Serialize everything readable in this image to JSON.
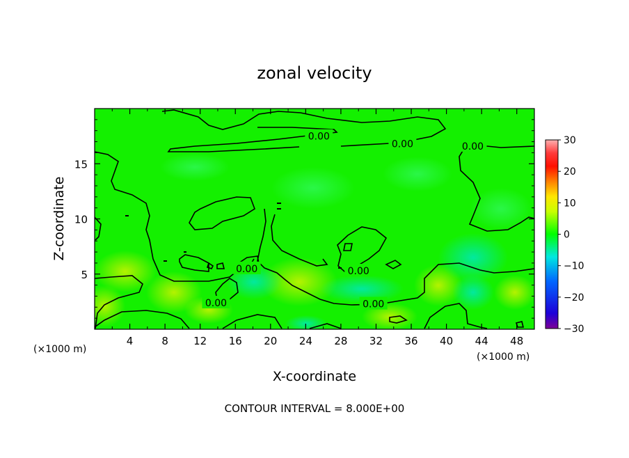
{
  "chart_data": {
    "type": "heatmap",
    "title": "zonal velocity",
    "xlabel": "X-coordinate",
    "ylabel": "Z-coordinate",
    "x_unit_left": "(×1000 m)",
    "x_unit_right": "(×1000 m)",
    "footer": "CONTOUR INTERVAL = 8.000E+00",
    "xlim": [
      0,
      50
    ],
    "ylim": [
      0,
      20
    ],
    "x_ticks": [
      4,
      8,
      12,
      16,
      20,
      24,
      28,
      32,
      36,
      40,
      44,
      48
    ],
    "y_ticks": [
      5,
      10,
      15
    ],
    "colorbar": {
      "range": [
        -30,
        30
      ],
      "ticks": [
        30,
        20,
        10,
        0,
        -10,
        -20,
        -30
      ],
      "tick_labels": [
        "30",
        "20",
        "10",
        "0",
        "−10",
        "−20",
        "−30"
      ]
    },
    "contour_labels": [
      {
        "text": "0.00",
        "x": 25.5,
        "y": 17.5
      },
      {
        "text": "0.00",
        "x": 35.0,
        "y": 16.8
      },
      {
        "text": "0.00",
        "x": 43.0,
        "y": 16.6
      },
      {
        "text": "0.00",
        "x": 17.3,
        "y": 5.5
      },
      {
        "text": "0.00",
        "x": 30.0,
        "y": 5.3
      },
      {
        "text": "0.00",
        "x": 13.8,
        "y": 2.4
      },
      {
        "text": "0.00",
        "x": 31.7,
        "y": 2.3
      }
    ],
    "field_notes": "zonal velocity field mostly near 0 (green), positive values (~+5, yellow-green) near the bottom around x 4-30 and negative values (~-5, cyan) around x 16-20 and 40-46 near z 4-8"
  }
}
